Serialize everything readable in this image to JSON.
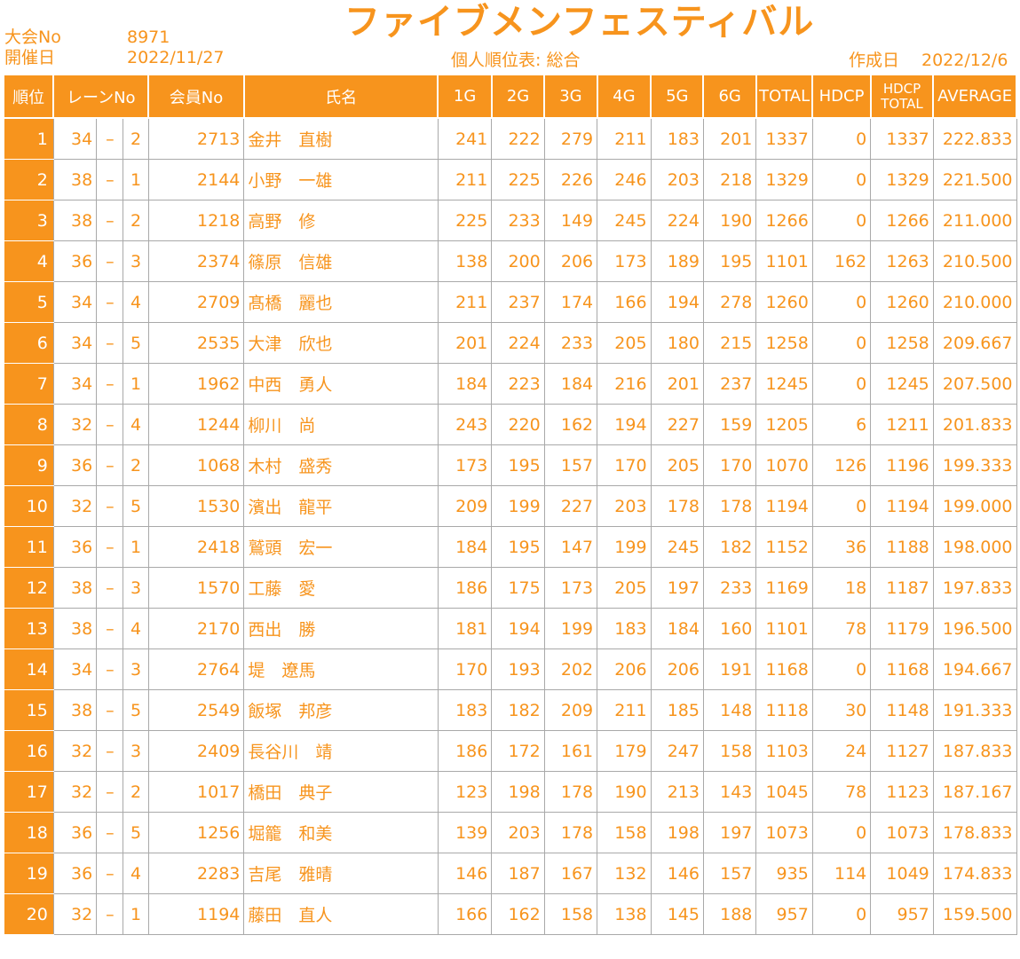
{
  "header": {
    "tournament_no_label": "大会No",
    "tournament_no": "8971",
    "event_date_label": "開催日",
    "event_date": "2022/11/27",
    "title": "ファイブメンフェスティバル",
    "subtitle": "個人順位表: 総合",
    "created_label": "作成日",
    "created_date": "2022/12/6"
  },
  "table": {
    "headers": {
      "rank": "順位",
      "lane": "レーンNo",
      "member": "会員No",
      "name": "氏名",
      "g1": "1G",
      "g2": "2G",
      "g3": "3G",
      "g4": "4G",
      "g5": "5G",
      "g6": "6G",
      "total": "TOTAL",
      "hdcp": "HDCP",
      "hdcp_total_1": "HDCP",
      "hdcp_total_2": "TOTAL",
      "average": "AVERAGE"
    },
    "dash": "–",
    "rows": [
      {
        "rank": "1",
        "lane": "34",
        "pos": "2",
        "member": "2713",
        "name": "金井　直樹",
        "g": [
          "241",
          "222",
          "279",
          "211",
          "183",
          "201"
        ],
        "total": "1337",
        "hdcp": "0",
        "hdcp_total": "1337",
        "average": "222.833"
      },
      {
        "rank": "2",
        "lane": "38",
        "pos": "1",
        "member": "2144",
        "name": "小野　一雄",
        "g": [
          "211",
          "225",
          "226",
          "246",
          "203",
          "218"
        ],
        "total": "1329",
        "hdcp": "0",
        "hdcp_total": "1329",
        "average": "221.500"
      },
      {
        "rank": "3",
        "lane": "38",
        "pos": "2",
        "member": "1218",
        "name": "高野　修",
        "g": [
          "225",
          "233",
          "149",
          "245",
          "224",
          "190"
        ],
        "total": "1266",
        "hdcp": "0",
        "hdcp_total": "1266",
        "average": "211.000"
      },
      {
        "rank": "4",
        "lane": "36",
        "pos": "3",
        "member": "2374",
        "name": "篠原　信雄",
        "g": [
          "138",
          "200",
          "206",
          "173",
          "189",
          "195"
        ],
        "total": "1101",
        "hdcp": "162",
        "hdcp_total": "1263",
        "average": "210.500"
      },
      {
        "rank": "5",
        "lane": "34",
        "pos": "4",
        "member": "2709",
        "name": "髙橋　麗也",
        "g": [
          "211",
          "237",
          "174",
          "166",
          "194",
          "278"
        ],
        "total": "1260",
        "hdcp": "0",
        "hdcp_total": "1260",
        "average": "210.000"
      },
      {
        "rank": "6",
        "lane": "34",
        "pos": "5",
        "member": "2535",
        "name": "大津　欣也",
        "g": [
          "201",
          "224",
          "233",
          "205",
          "180",
          "215"
        ],
        "total": "1258",
        "hdcp": "0",
        "hdcp_total": "1258",
        "average": "209.667"
      },
      {
        "rank": "7",
        "lane": "34",
        "pos": "1",
        "member": "1962",
        "name": "中西　勇人",
        "g": [
          "184",
          "223",
          "184",
          "216",
          "201",
          "237"
        ],
        "total": "1245",
        "hdcp": "0",
        "hdcp_total": "1245",
        "average": "207.500"
      },
      {
        "rank": "8",
        "lane": "32",
        "pos": "4",
        "member": "1244",
        "name": "柳川　尚",
        "g": [
          "243",
          "220",
          "162",
          "194",
          "227",
          "159"
        ],
        "total": "1205",
        "hdcp": "6",
        "hdcp_total": "1211",
        "average": "201.833"
      },
      {
        "rank": "9",
        "lane": "36",
        "pos": "2",
        "member": "1068",
        "name": "木村　盛秀",
        "g": [
          "173",
          "195",
          "157",
          "170",
          "205",
          "170"
        ],
        "total": "1070",
        "hdcp": "126",
        "hdcp_total": "1196",
        "average": "199.333"
      },
      {
        "rank": "10",
        "lane": "32",
        "pos": "5",
        "member": "1530",
        "name": "濱出　龍平",
        "g": [
          "209",
          "199",
          "227",
          "203",
          "178",
          "178"
        ],
        "total": "1194",
        "hdcp": "0",
        "hdcp_total": "1194",
        "average": "199.000"
      },
      {
        "rank": "11",
        "lane": "36",
        "pos": "1",
        "member": "2418",
        "name": "鷲頭　宏一",
        "g": [
          "184",
          "195",
          "147",
          "199",
          "245",
          "182"
        ],
        "total": "1152",
        "hdcp": "36",
        "hdcp_total": "1188",
        "average": "198.000"
      },
      {
        "rank": "12",
        "lane": "38",
        "pos": "3",
        "member": "1570",
        "name": "工藤　愛",
        "g": [
          "186",
          "175",
          "173",
          "205",
          "197",
          "233"
        ],
        "total": "1169",
        "hdcp": "18",
        "hdcp_total": "1187",
        "average": "197.833"
      },
      {
        "rank": "13",
        "lane": "38",
        "pos": "4",
        "member": "2170",
        "name": "西出　勝",
        "g": [
          "181",
          "194",
          "199",
          "183",
          "184",
          "160"
        ],
        "total": "1101",
        "hdcp": "78",
        "hdcp_total": "1179",
        "average": "196.500"
      },
      {
        "rank": "14",
        "lane": "34",
        "pos": "3",
        "member": "2764",
        "name": "堤　遼馬",
        "g": [
          "170",
          "193",
          "202",
          "206",
          "206",
          "191"
        ],
        "total": "1168",
        "hdcp": "0",
        "hdcp_total": "1168",
        "average": "194.667"
      },
      {
        "rank": "15",
        "lane": "38",
        "pos": "5",
        "member": "2549",
        "name": "飯塚　邦彦",
        "g": [
          "183",
          "182",
          "209",
          "211",
          "185",
          "148"
        ],
        "total": "1118",
        "hdcp": "30",
        "hdcp_total": "1148",
        "average": "191.333"
      },
      {
        "rank": "16",
        "lane": "32",
        "pos": "3",
        "member": "2409",
        "name": "長谷川　靖",
        "g": [
          "186",
          "172",
          "161",
          "179",
          "247",
          "158"
        ],
        "total": "1103",
        "hdcp": "24",
        "hdcp_total": "1127",
        "average": "187.833"
      },
      {
        "rank": "17",
        "lane": "32",
        "pos": "2",
        "member": "1017",
        "name": "橋田　典子",
        "g": [
          "123",
          "198",
          "178",
          "190",
          "213",
          "143"
        ],
        "total": "1045",
        "hdcp": "78",
        "hdcp_total": "1123",
        "average": "187.167"
      },
      {
        "rank": "18",
        "lane": "36",
        "pos": "5",
        "member": "1256",
        "name": "堀籠　和美",
        "g": [
          "139",
          "203",
          "178",
          "158",
          "198",
          "197"
        ],
        "total": "1073",
        "hdcp": "0",
        "hdcp_total": "1073",
        "average": "178.833"
      },
      {
        "rank": "19",
        "lane": "36",
        "pos": "4",
        "member": "2283",
        "name": "吉尾　雅晴",
        "g": [
          "146",
          "187",
          "167",
          "132",
          "146",
          "157"
        ],
        "total": "935",
        "hdcp": "114",
        "hdcp_total": "1049",
        "average": "174.833"
      },
      {
        "rank": "20",
        "lane": "32",
        "pos": "1",
        "member": "1194",
        "name": "藤田　直人",
        "g": [
          "166",
          "162",
          "158",
          "138",
          "145",
          "188"
        ],
        "total": "957",
        "hdcp": "0",
        "hdcp_total": "957",
        "average": "159.500"
      }
    ]
  },
  "colors": {
    "accent": "#f7941d",
    "grid": "#a9a9a9",
    "background": "#ffffff"
  }
}
